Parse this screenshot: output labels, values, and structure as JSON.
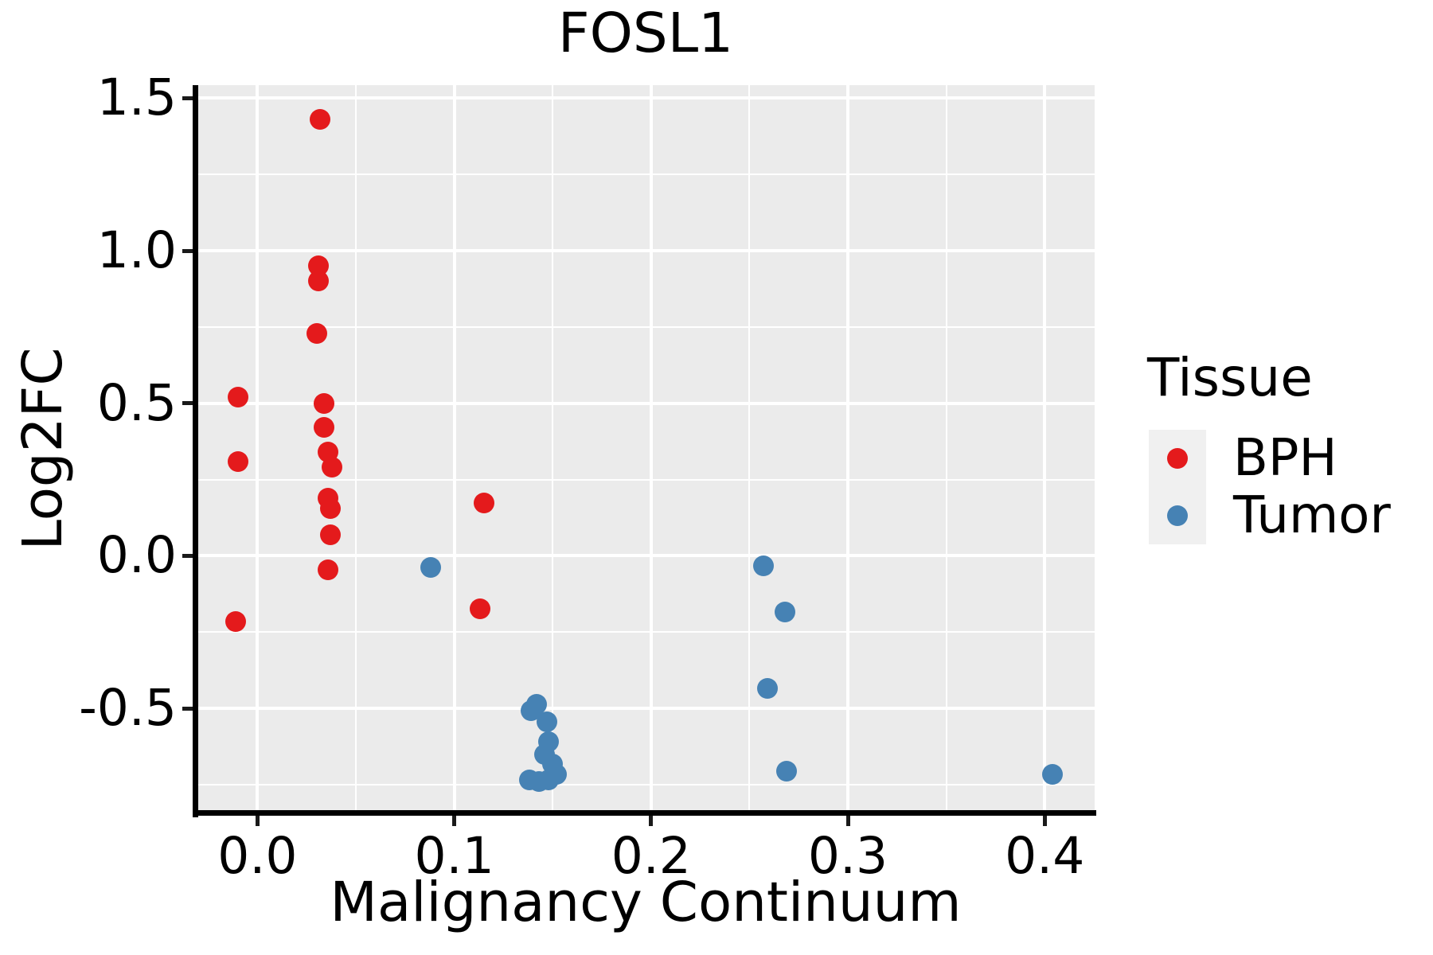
{
  "title": "FOSL1",
  "axes": {
    "x": {
      "label": "Malignancy Continuum",
      "tick_labels": [
        "0.0",
        "0.1",
        "0.2",
        "0.3",
        "0.4"
      ],
      "tick_values": [
        0.0,
        0.1,
        0.2,
        0.3,
        0.4
      ],
      "minor_values": [
        0.05,
        0.15,
        0.25,
        0.35
      ],
      "range": [
        -0.0309,
        0.4254
      ]
    },
    "y": {
      "label": "Log2FC",
      "tick_labels": [
        "1.5",
        "1.0",
        "0.5",
        "0.0",
        "-0.5"
      ],
      "tick_values": [
        1.5,
        1.0,
        0.5,
        0.0,
        -0.5
      ],
      "minor_values": [
        1.25,
        0.75,
        0.25,
        -0.25,
        -0.75
      ],
      "range": [
        -0.841,
        1.5424
      ]
    }
  },
  "legend": {
    "title": "Tissue",
    "items": [
      {
        "label": "BPH",
        "color": "#e41a1c"
      },
      {
        "label": "Tumor",
        "color": "#4682b4"
      }
    ]
  },
  "colors": {
    "panel_bg": "#ebebeb",
    "grid": "#ffffff",
    "axis": "#000000",
    "legend_key_bg": "#f0f0f0",
    "bph": "#e41a1c",
    "tumor": "#4682b4"
  },
  "chart_data": {
    "type": "scatter",
    "title": "FOSL1",
    "xlabel": "Malignancy Continuum",
    "ylabel": "Log2FC",
    "xlim": [
      -0.031,
      0.425
    ],
    "ylim": [
      -0.84,
      1.54
    ],
    "grid": "white major+minor gridlines on gray panel",
    "legend_position": "right",
    "series": [
      {
        "name": "BPH",
        "color": "#e41a1c",
        "points": [
          [
            0.032,
            1.43
          ],
          [
            0.031,
            0.95
          ],
          [
            0.031,
            0.9
          ],
          [
            0.03,
            0.73
          ],
          [
            -0.01,
            0.52
          ],
          [
            0.034,
            0.5
          ],
          [
            0.034,
            0.42
          ],
          [
            0.036,
            0.34
          ],
          [
            -0.01,
            0.31
          ],
          [
            0.038,
            0.29
          ],
          [
            0.036,
            0.19
          ],
          [
            0.037,
            0.155
          ],
          [
            0.037,
            0.07
          ],
          [
            0.036,
            -0.046
          ],
          [
            0.115,
            0.174
          ],
          [
            0.113,
            -0.174
          ],
          [
            -0.011,
            -0.214
          ]
        ]
      },
      {
        "name": "Tumor",
        "color": "#4682b4",
        "points": [
          [
            0.088,
            -0.038
          ],
          [
            0.142,
            -0.486
          ],
          [
            0.139,
            -0.508
          ],
          [
            0.147,
            -0.545
          ],
          [
            0.148,
            -0.608
          ],
          [
            0.146,
            -0.651
          ],
          [
            0.15,
            -0.682
          ],
          [
            0.152,
            -0.717
          ],
          [
            0.138,
            -0.734
          ],
          [
            0.143,
            -0.738
          ],
          [
            0.148,
            -0.734
          ],
          [
            0.257,
            -0.032
          ],
          [
            0.268,
            -0.185
          ],
          [
            0.259,
            -0.434
          ],
          [
            0.269,
            -0.706
          ],
          [
            0.404,
            -0.717
          ]
        ]
      }
    ]
  }
}
